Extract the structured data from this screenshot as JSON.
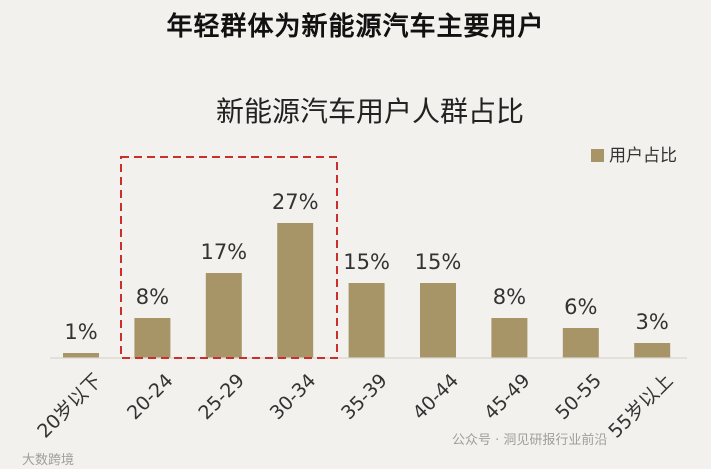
{
  "page": {
    "title": "年轻群体为新能源汽车主要用户",
    "watermark_left": "大数跨境",
    "watermark_right": "公众号 · 洞见研报行业前沿"
  },
  "chart_data": {
    "type": "bar",
    "title": "新能源汽车用户人群占比",
    "categories": [
      "20岁以下",
      "20-24",
      "25-29",
      "30-34",
      "35-39",
      "40-44",
      "45-49",
      "50-55",
      "55岁以上"
    ],
    "series": [
      {
        "name": "用户占比",
        "values": [
          1,
          8,
          17,
          27,
          15,
          15,
          8,
          6,
          3
        ],
        "labels": [
          "1%",
          "8%",
          "17%",
          "27%",
          "15%",
          "15%",
          "8%",
          "6%",
          "3%"
        ]
      }
    ],
    "ylim": [
      0,
      35
    ],
    "highlight_categories": [
      "20-24",
      "25-29",
      "30-34"
    ],
    "legend_position": "top-right",
    "grid": false,
    "colors": {
      "bar": "#a89567",
      "highlight_box": "#c9302c",
      "axis": "#d9d6d0",
      "text": "#333333"
    }
  }
}
